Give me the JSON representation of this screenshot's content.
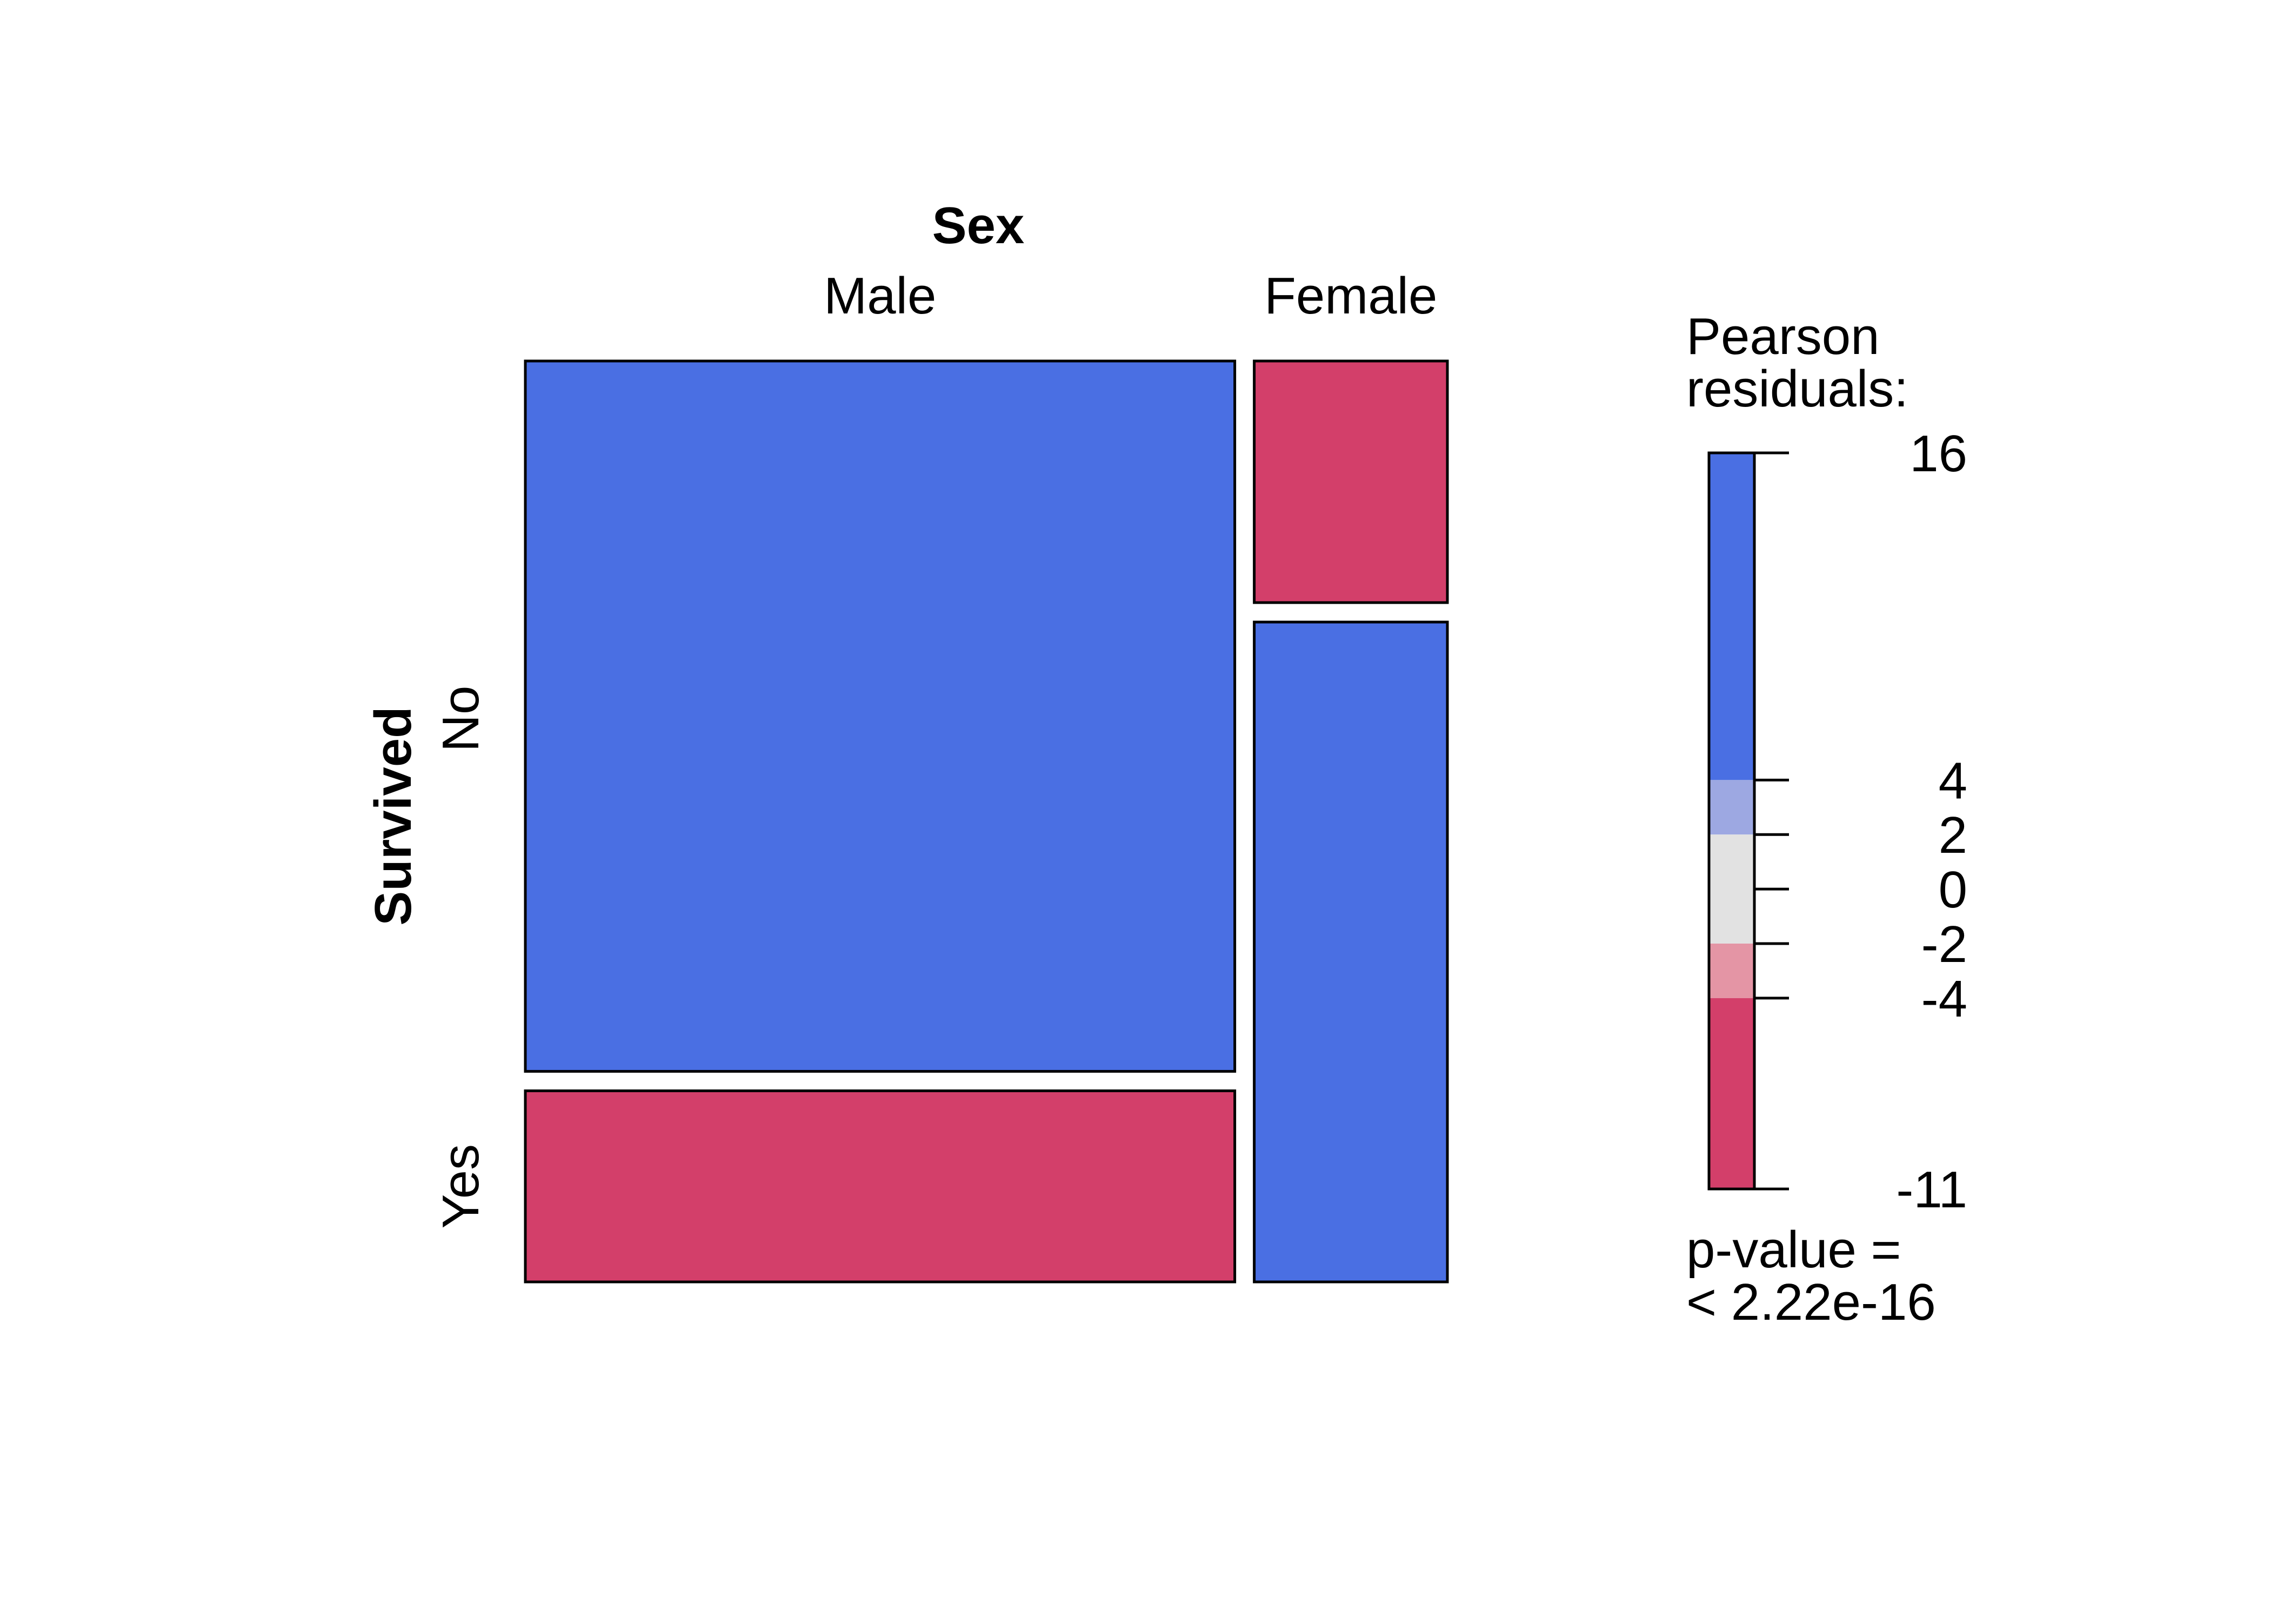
{
  "chart_data": {
    "type": "mosaic",
    "row_variable": "Survived",
    "col_variable": "Sex",
    "columns": [
      {
        "label": "Male",
        "share": 0.786
      },
      {
        "label": "Female",
        "share": 0.214
      }
    ],
    "rows": [
      "No",
      "Yes"
    ],
    "cells": [
      {
        "col": "Male",
        "row": "No",
        "share": 0.788,
        "residual_band": "> 4"
      },
      {
        "col": "Male",
        "row": "Yes",
        "share": 0.212,
        "residual_band": "< -4"
      },
      {
        "col": "Female",
        "row": "No",
        "share": 0.268,
        "residual_band": "< -4"
      },
      {
        "col": "Female",
        "row": "Yes",
        "share": 0.732,
        "residual_band": "> 4"
      }
    ],
    "legend": {
      "title_line1": "Pearson",
      "title_line2": "residuals:",
      "min": -11,
      "max": 16,
      "ticks": [
        "16",
        "4",
        "2",
        "0",
        "-2",
        "-4",
        "-11"
      ],
      "tick_values": [
        16,
        4,
        2,
        0,
        -2,
        -4,
        -11
      ],
      "bands": [
        {
          "from": 4,
          "to": 16,
          "color": "#4A6FE3"
        },
        {
          "from": 2,
          "to": 4,
          "color": "#9DA8E2"
        },
        {
          "from": -2,
          "to": 2,
          "color": "#E2E2E2"
        },
        {
          "from": -4,
          "to": -2,
          "color": "#E495A5"
        },
        {
          "from": -11,
          "to": -4,
          "color": "#D33F6A"
        }
      ]
    },
    "pvalue_line1": "p-value =",
    "pvalue_line2": "< 2.22e-16"
  },
  "colors": {
    "positive": "#4A6FE3",
    "negative": "#D33F6A"
  }
}
